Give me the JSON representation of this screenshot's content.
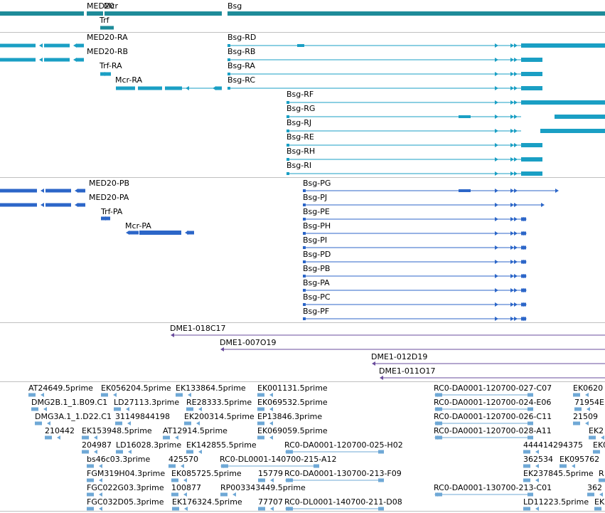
{
  "colors": {
    "gene": "#1e8b99",
    "transcript": "#1a9fc4",
    "protein": "#2c66c8",
    "clone": "#6a4c9c",
    "est": "#6fa8d6",
    "separator": "#c0c0c0"
  },
  "gene_track": {
    "labels": [
      "MED20",
      "Mcr",
      "Trf",
      "Bsg"
    ]
  },
  "transcript_track": {
    "labels": [
      "MED20-RA",
      "MED20-RB",
      "Trf-RA",
      "Mcr-RA",
      "Bsg-RD",
      "Bsg-RB",
      "Bsg-RA",
      "Bsg-RC",
      "Bsg-RF",
      "Bsg-RG",
      "Bsg-RJ",
      "Bsg-RE",
      "Bsg-RH",
      "Bsg-RI"
    ]
  },
  "protein_track": {
    "labels": [
      "MED20-PB",
      "MED20-PA",
      "Trf-PA",
      "Mcr-PA",
      "Bsg-PG",
      "Bsg-PJ",
      "Bsg-PE",
      "Bsg-PH",
      "Bsg-PI",
      "Bsg-PD",
      "Bsg-PB",
      "Bsg-PA",
      "Bsg-PC",
      "Bsg-PF"
    ]
  },
  "clone_track": {
    "labels": [
      "DME1-018C17",
      "DME1-007O19",
      "DME1-012D19",
      "DME1-011O17"
    ]
  },
  "est_track": {
    "labels": [
      "AT24649.5prime",
      "EK056204.5prime",
      "EK133864.5prime",
      "EK001131.5prime",
      "RC0-DA0001-120700-027-C07",
      "EK0620",
      "DMG2B.1_1.B09.C1",
      "LD27113.3prime",
      "RE28333.5prime",
      "EK069532.5prime",
      "RC0-DA0001-120700-024-E06",
      "71954E",
      "DMG3A.1_1.D22.C1",
      "31149844198",
      "EK200314.5prime",
      "EP13846.3prime",
      "RC0-DA0001-120700-026-C11",
      "21509",
      "210442",
      "EK153948.5prime",
      "AT12914.5prime",
      "EK069059.5prime",
      "RC0-DA0001-120700-028-A11",
      "EK2",
      "204987",
      "LD16028.3prime",
      "EK142855.5prime",
      "RC0-DA0001-120700-025-H02",
      "444414294375",
      "EK0",
      "bs46c03.3prime",
      "425570",
      "RC0-DL0001-140700-215-A12",
      "362534",
      "EK095762",
      "FGM319H04.3prime",
      "EK085725.5prime",
      "15779",
      "RC0-DA0001-130700-213-F09",
      "EK237845.5prime",
      "R",
      "FGC022G03.3prime",
      "100877",
      "RP003343449.5prime",
      "RC0-DA0001-130700-213-C01",
      "362",
      "FGC032D05.3prime",
      "EK176324.5prime",
      "77707",
      "RC0-DL0001-140700-211-D08",
      "LD11223.5prime",
      "EK"
    ]
  }
}
